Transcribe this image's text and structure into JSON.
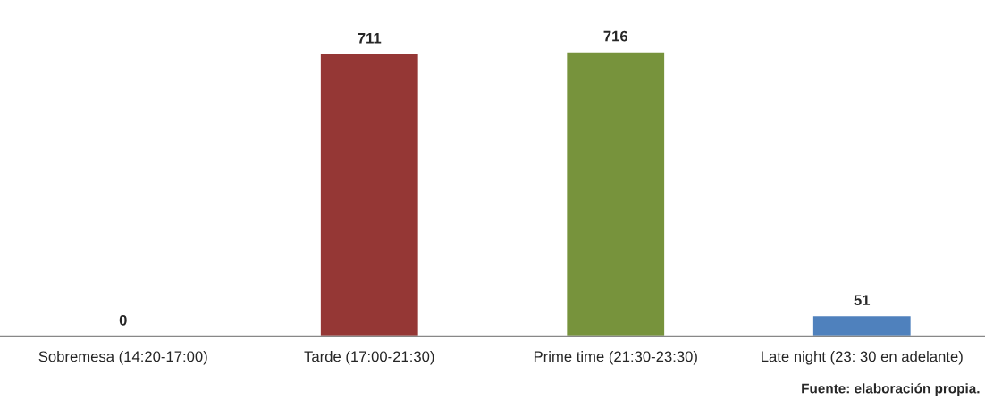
{
  "chart_data": {
    "type": "bar",
    "categories": [
      "Sobremesa (14:20-17:00)",
      "Tarde (17:00-21:30)",
      "Prime time (21:30-23:30)",
      "Late night (23: 30 en adelante)"
    ],
    "values": [
      0,
      711,
      716,
      51
    ],
    "colors": [
      null,
      "#953735",
      "#77933c",
      "#4f81bd"
    ],
    "data_labels": true,
    "tick_labels": "x",
    "grid": false,
    "legend": false,
    "annotations": [
      "Fuente: elaboración propia."
    ]
  }
}
